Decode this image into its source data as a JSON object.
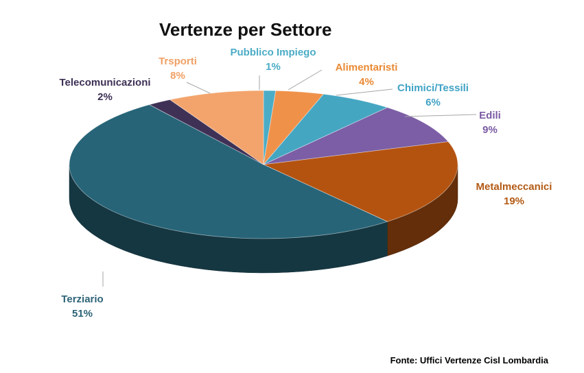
{
  "chart_data": {
    "type": "pie",
    "title": "Vertenze per Settore",
    "three_d": true,
    "start_angle_deg": 270,
    "direction": "clockwise",
    "slices": [
      {
        "label": "Pubblico Impiego",
        "value": 1,
        "percent_label": "1%",
        "color": "#4bacc6",
        "label_color": "#4bacc6"
      },
      {
        "label": "Alimentaristi",
        "value": 4,
        "percent_label": "4%",
        "color": "#f0914a",
        "label_color": "#ea8a35"
      },
      {
        "label": "Chimici/Tessili",
        "value": 6,
        "percent_label": "6%",
        "color": "#45a6c2",
        "label_color": "#3fa2c4"
      },
      {
        "label": "Edili",
        "value": 9,
        "percent_label": "9%",
        "color": "#7b5ea5",
        "label_color": "#7a5aa3"
      },
      {
        "label": "Metalmeccanici",
        "value": 19,
        "percent_label": "19%",
        "color": "#b45310",
        "label_color": "#b35a14"
      },
      {
        "label": "Terziario",
        "value": 51,
        "percent_label": "51%",
        "color": "#276478",
        "label_color": "#2d6376"
      },
      {
        "label": "Telecomunicazioni",
        "value": 2,
        "percent_label": "2%",
        "color": "#3f3156",
        "label_color": "#3d3054"
      },
      {
        "label": "Trsporti",
        "value": 8,
        "percent_label": "8%",
        "color": "#f3a46c",
        "label_color": "#f0a065"
      }
    ]
  },
  "source_note": "Fonte: Uffici Vertenze Cisl Lombardia"
}
